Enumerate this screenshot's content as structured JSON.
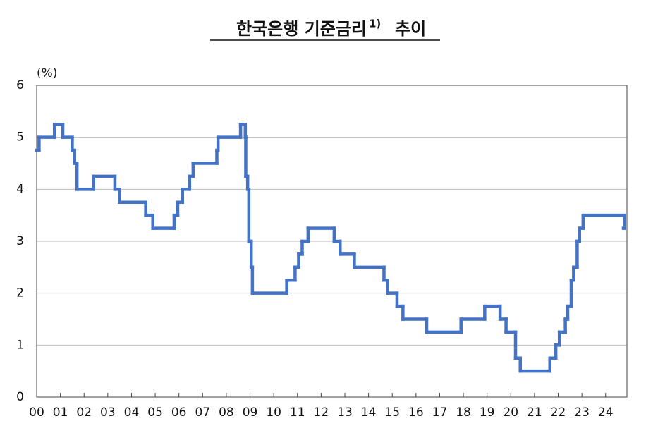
{
  "chart_data": {
    "type": "line",
    "step": "after",
    "title": "한국은행 기준금리",
    "title_note": "1)",
    "title_suffix": "추이",
    "y_label": "(%)",
    "color": "#4472c4",
    "grid": true,
    "xlim": [
      2000,
      2024.9
    ],
    "xticks": [
      {
        "value": 2000,
        "label": "00"
      },
      {
        "value": 2001,
        "label": "01"
      },
      {
        "value": 2002,
        "label": "02"
      },
      {
        "value": 2003,
        "label": "03"
      },
      {
        "value": 2004,
        "label": "04"
      },
      {
        "value": 2005,
        "label": "05"
      },
      {
        "value": 2006,
        "label": "06"
      },
      {
        "value": 2007,
        "label": "07"
      },
      {
        "value": 2008,
        "label": "08"
      },
      {
        "value": 2009,
        "label": "09"
      },
      {
        "value": 2010,
        "label": "10"
      },
      {
        "value": 2011,
        "label": "11"
      },
      {
        "value": 2012,
        "label": "12"
      },
      {
        "value": 2013,
        "label": "13"
      },
      {
        "value": 2014,
        "label": "14"
      },
      {
        "value": 2015,
        "label": "15"
      },
      {
        "value": 2016,
        "label": "16"
      },
      {
        "value": 2017,
        "label": "17"
      },
      {
        "value": 2018,
        "label": "18"
      },
      {
        "value": 2019,
        "label": "19"
      },
      {
        "value": 2020,
        "label": "20"
      },
      {
        "value": 2021,
        "label": "21"
      },
      {
        "value": 2022,
        "label": "22"
      },
      {
        "value": 2023,
        "label": "23"
      },
      {
        "value": 2024,
        "label": "24"
      }
    ],
    "ylim": [
      0,
      6
    ],
    "yticks": [
      0,
      1,
      2,
      3,
      4,
      5,
      6
    ],
    "x": [
      2000.0,
      2000.1,
      2000.75,
      2001.1,
      2001.5,
      2001.6,
      2001.7,
      2002.4,
      2003.3,
      2003.5,
      2004.6,
      2004.9,
      2005.8,
      2005.95,
      2006.15,
      2006.45,
      2006.6,
      2007.6,
      2007.65,
      2008.6,
      2008.8,
      2008.82,
      2008.9,
      2008.95,
      2009.05,
      2009.1,
      2010.55,
      2010.9,
      2011.05,
      2011.2,
      2011.45,
      2012.55,
      2012.8,
      2013.4,
      2014.65,
      2014.8,
      2015.2,
      2015.45,
      2016.45,
      2017.9,
      2018.9,
      2019.55,
      2019.8,
      2020.2,
      2020.4,
      2021.65,
      2021.9,
      2022.05,
      2022.3,
      2022.4,
      2022.55,
      2022.65,
      2022.8,
      2022.9,
      2023.05,
      2024.8
    ],
    "values": [
      4.75,
      5.0,
      5.25,
      5.0,
      4.75,
      4.5,
      4.0,
      4.25,
      4.0,
      3.75,
      3.5,
      3.25,
      3.5,
      3.75,
      4.0,
      4.25,
      4.5,
      4.75,
      5.0,
      5.25,
      5.0,
      4.25,
      4.0,
      3.0,
      2.5,
      2.0,
      2.25,
      2.5,
      2.75,
      3.0,
      3.25,
      3.0,
      2.75,
      2.5,
      2.25,
      2.0,
      1.75,
      1.5,
      1.25,
      1.5,
      1.75,
      1.5,
      1.25,
      0.75,
      0.5,
      0.75,
      1.0,
      1.25,
      1.5,
      1.75,
      2.25,
      2.5,
      3.0,
      3.25,
      3.5,
      3.25
    ]
  }
}
